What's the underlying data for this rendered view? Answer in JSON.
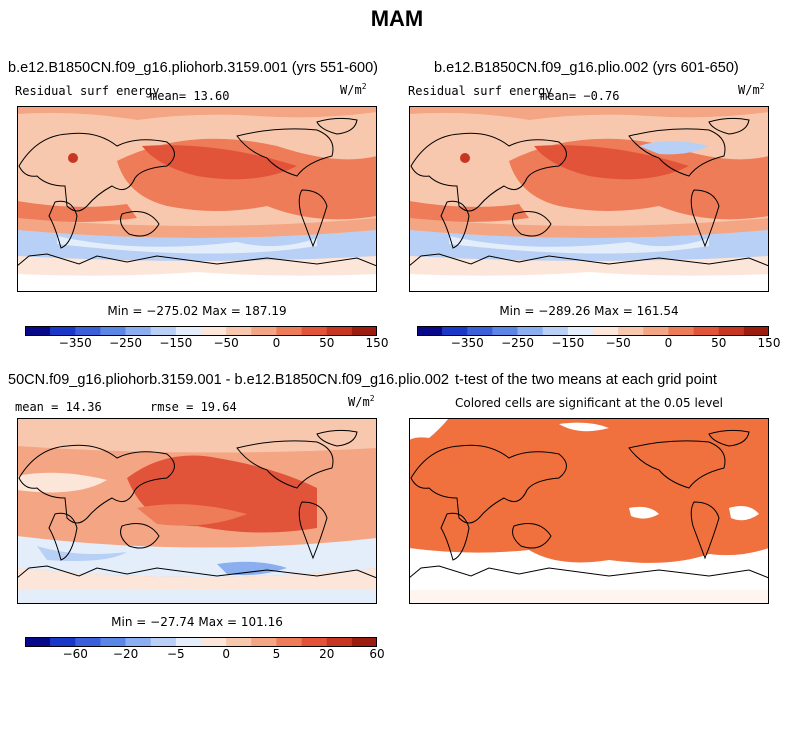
{
  "title": "MAM",
  "chart_data": [
    {
      "type": "heatmap",
      "title": "b.e12.B1850CN.f09_g16.pliohorb.3159.001 (yrs 551-600)",
      "left_label": "Residual surf energy",
      "mean_text": "mean=  13.60",
      "units": "W/m",
      "units_sup": "2",
      "minmax": "Min = −275.02 Max = 187.19",
      "colorbar_ticks": [
        "−350",
        "−250",
        "−150",
        "−50",
        "0",
        "50",
        "150"
      ]
    },
    {
      "type": "heatmap",
      "title": "b.e12.B1850CN.f09_g16.plio.002 (yrs 601-650)",
      "left_label": "Residual surf energy",
      "mean_text": "mean=  −0.76",
      "units": "W/m",
      "units_sup": "2",
      "minmax": "Min = −289.26 Max = 161.54",
      "colorbar_ticks": [
        "−350",
        "−250",
        "−150",
        "−50",
        "0",
        "50",
        "150"
      ]
    },
    {
      "type": "heatmap",
      "title": "50CN.f09_g16.pliohorb.3159.001 - b.e12.B1850CN.f09_g16.plio.002",
      "mean_text": "mean =  14.36",
      "rmse_text": "rmse =  19.64",
      "units": "W/m",
      "units_sup": "2",
      "minmax": "Min = −27.74 Max = 101.16",
      "colorbar_ticks": [
        "−60",
        "−20",
        "−5",
        "0",
        "5",
        "20",
        "60"
      ]
    },
    {
      "type": "heatmap",
      "title": "t-test of the two means at each grid point",
      "subtitle": "Colored cells are significant at the 0.05 level"
    }
  ],
  "colors": {
    "colorbar": [
      "#08088a",
      "#1a38c8",
      "#3b5fd9",
      "#5a86e6",
      "#8aaef0",
      "#b8d0f5",
      "#e4eefb",
      "#fce6da",
      "#f8c8ae",
      "#f4a583",
      "#ee7c58",
      "#e2543a",
      "#c63622",
      "#9c1c10"
    ],
    "ocean_warm": "#ee7c58",
    "land_light": "#f8c8ae",
    "significant": "#f0713e"
  }
}
